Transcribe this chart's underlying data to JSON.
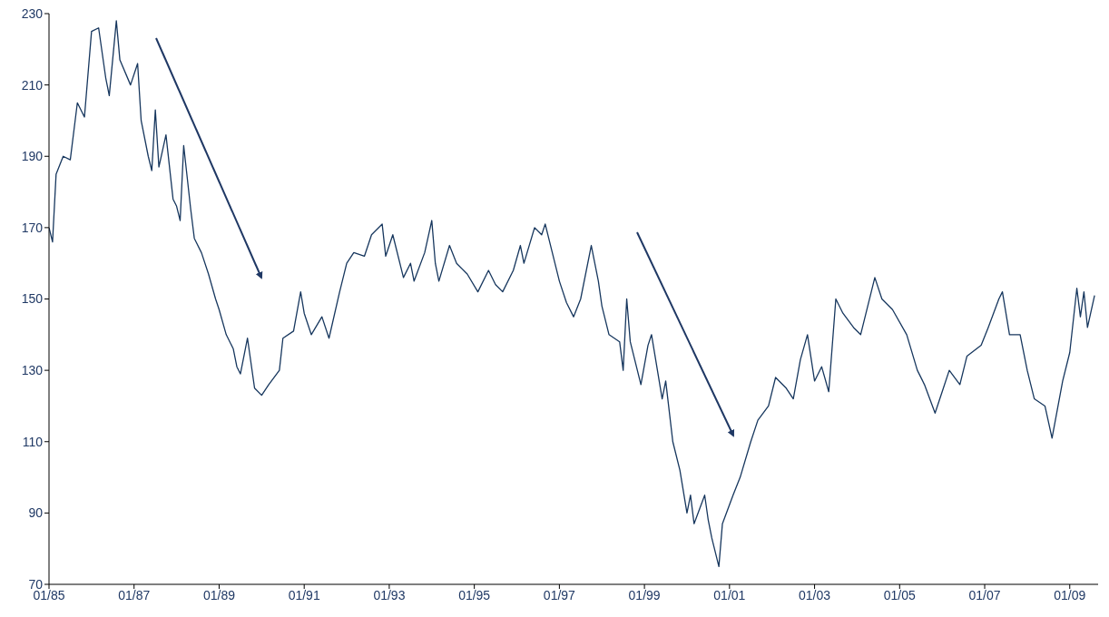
{
  "chart_data": {
    "type": "line",
    "x": [
      "1985-01",
      "1985-02",
      "1985-03",
      "1985-05",
      "1985-07",
      "1985-09",
      "1985-11",
      "1986-01",
      "1986-03",
      "1986-05",
      "1986-06",
      "1986-08",
      "1986-09",
      "1986-12",
      "1987-02",
      "1987-03",
      "1987-05",
      "1987-06",
      "1987-07",
      "1987-08",
      "1987-10",
      "1987-12",
      "1988-01",
      "1988-02",
      "1988-03",
      "1988-05",
      "1988-06",
      "1988-08",
      "1988-10",
      "1988-12",
      "1989-01",
      "1989-03",
      "1989-05",
      "1989-06",
      "1989-07",
      "1989-08",
      "1989-09",
      "1989-11",
      "1990-01",
      "1990-03",
      "1990-06",
      "1990-07",
      "1990-10",
      "1990-12",
      "1991-01",
      "1991-03",
      "1991-06",
      "1991-08",
      "1991-11",
      "1992-01",
      "1992-03",
      "1992-06",
      "1992-08",
      "1992-11",
      "1992-12",
      "1993-02",
      "1993-05",
      "1993-07",
      "1993-08",
      "1993-11",
      "1994-01",
      "1994-02",
      "1994-03",
      "1994-06",
      "1994-08",
      "1994-11",
      "1995-02",
      "1995-05",
      "1995-07",
      "1995-09",
      "1995-12",
      "1996-02",
      "1996-03",
      "1996-06",
      "1996-08",
      "1996-09",
      "1996-11",
      "1997-01",
      "1997-03",
      "1997-05",
      "1997-07",
      "1997-10",
      "1997-12",
      "1998-01",
      "1998-03",
      "1998-06",
      "1998-07",
      "1998-08",
      "1998-09",
      "1998-12",
      "1999-02",
      "1999-03",
      "1999-06",
      "1999-07",
      "1999-09",
      "1999-11",
      "2000-01",
      "2000-02",
      "2000-03",
      "2000-06",
      "2000-07",
      "2000-08",
      "2000-10",
      "2000-11",
      "2001-02",
      "2001-04",
      "2001-07",
      "2001-09",
      "2001-12",
      "2002-02",
      "2002-05",
      "2002-07",
      "2002-09",
      "2002-11",
      "2003-01",
      "2003-03",
      "2003-05",
      "2003-07",
      "2003-09",
      "2003-12",
      "2004-02",
      "2004-05",
      "2004-06",
      "2004-08",
      "2004-11",
      "2005-03",
      "2005-06",
      "2005-08",
      "2005-11",
      "2006-01",
      "2006-03",
      "2006-06",
      "2006-08",
      "2006-12",
      "2007-02",
      "2007-05",
      "2007-06",
      "2007-08",
      "2007-11",
      "2008-01",
      "2008-03",
      "2008-06",
      "2008-08",
      "2008-11",
      "2009-01",
      "2009-03",
      "2009-04",
      "2009-05",
      "2009-06",
      "2009-08"
    ],
    "series": [
      {
        "color": "#17375e",
        "values": [
          170,
          166,
          185,
          190,
          189,
          205,
          201,
          225,
          226,
          212,
          207,
          228,
          217,
          210,
          216,
          200,
          190,
          186,
          203,
          187,
          196,
          178,
          176,
          172,
          193,
          175,
          167,
          163,
          157,
          150,
          147,
          140,
          136,
          131,
          129,
          134,
          139,
          125,
          123,
          126,
          130,
          139,
          141,
          152,
          146,
          140,
          145,
          139,
          152,
          160,
          163,
          162,
          168,
          171,
          162,
          168,
          156,
          160,
          155,
          163,
          172,
          160,
          155,
          165,
          160,
          157,
          152,
          158,
          154,
          152,
          158,
          165,
          160,
          170,
          168,
          171,
          163,
          155,
          149,
          145,
          150,
          165,
          155,
          148,
          140,
          138,
          130,
          150,
          138,
          126,
          137,
          140,
          122,
          127,
          110,
          102,
          90,
          95,
          87,
          95,
          88,
          83,
          75,
          87,
          95,
          100,
          110,
          116,
          120,
          128,
          125,
          122,
          133,
          140,
          127,
          131,
          124,
          150,
          146,
          142,
          140,
          152,
          156,
          150,
          147,
          140,
          130,
          126,
          118,
          124,
          130,
          126,
          134,
          137,
          142,
          150,
          152,
          140,
          140,
          130,
          122,
          120,
          111,
          127,
          135,
          153,
          145,
          152,
          142,
          151
        ]
      }
    ],
    "xlim": [
      "1985-01",
      "2009-09"
    ],
    "xticks": [
      {
        "value": "1985-01",
        "label": "01/85"
      },
      {
        "value": "1987-01",
        "label": "01/87"
      },
      {
        "value": "1989-01",
        "label": "01/89"
      },
      {
        "value": "1991-01",
        "label": "01/91"
      },
      {
        "value": "1993-01",
        "label": "01/93"
      },
      {
        "value": "1995-01",
        "label": "01/95"
      },
      {
        "value": "1997-01",
        "label": "01/97"
      },
      {
        "value": "1999-01",
        "label": "01/99"
      },
      {
        "value": "2001-01",
        "label": "01/01"
      },
      {
        "value": "2003-01",
        "label": "01/03"
      },
      {
        "value": "2005-01",
        "label": "01/05"
      },
      {
        "value": "2007-01",
        "label": "01/07"
      },
      {
        "value": "2009-01",
        "label": "01/09"
      }
    ],
    "ylim": [
      70,
      230
    ],
    "yticks": [
      70,
      90,
      110,
      130,
      150,
      170,
      190,
      210,
      230
    ],
    "grid": false,
    "legend": false,
    "marker": "none",
    "line_style": "solid"
  }
}
